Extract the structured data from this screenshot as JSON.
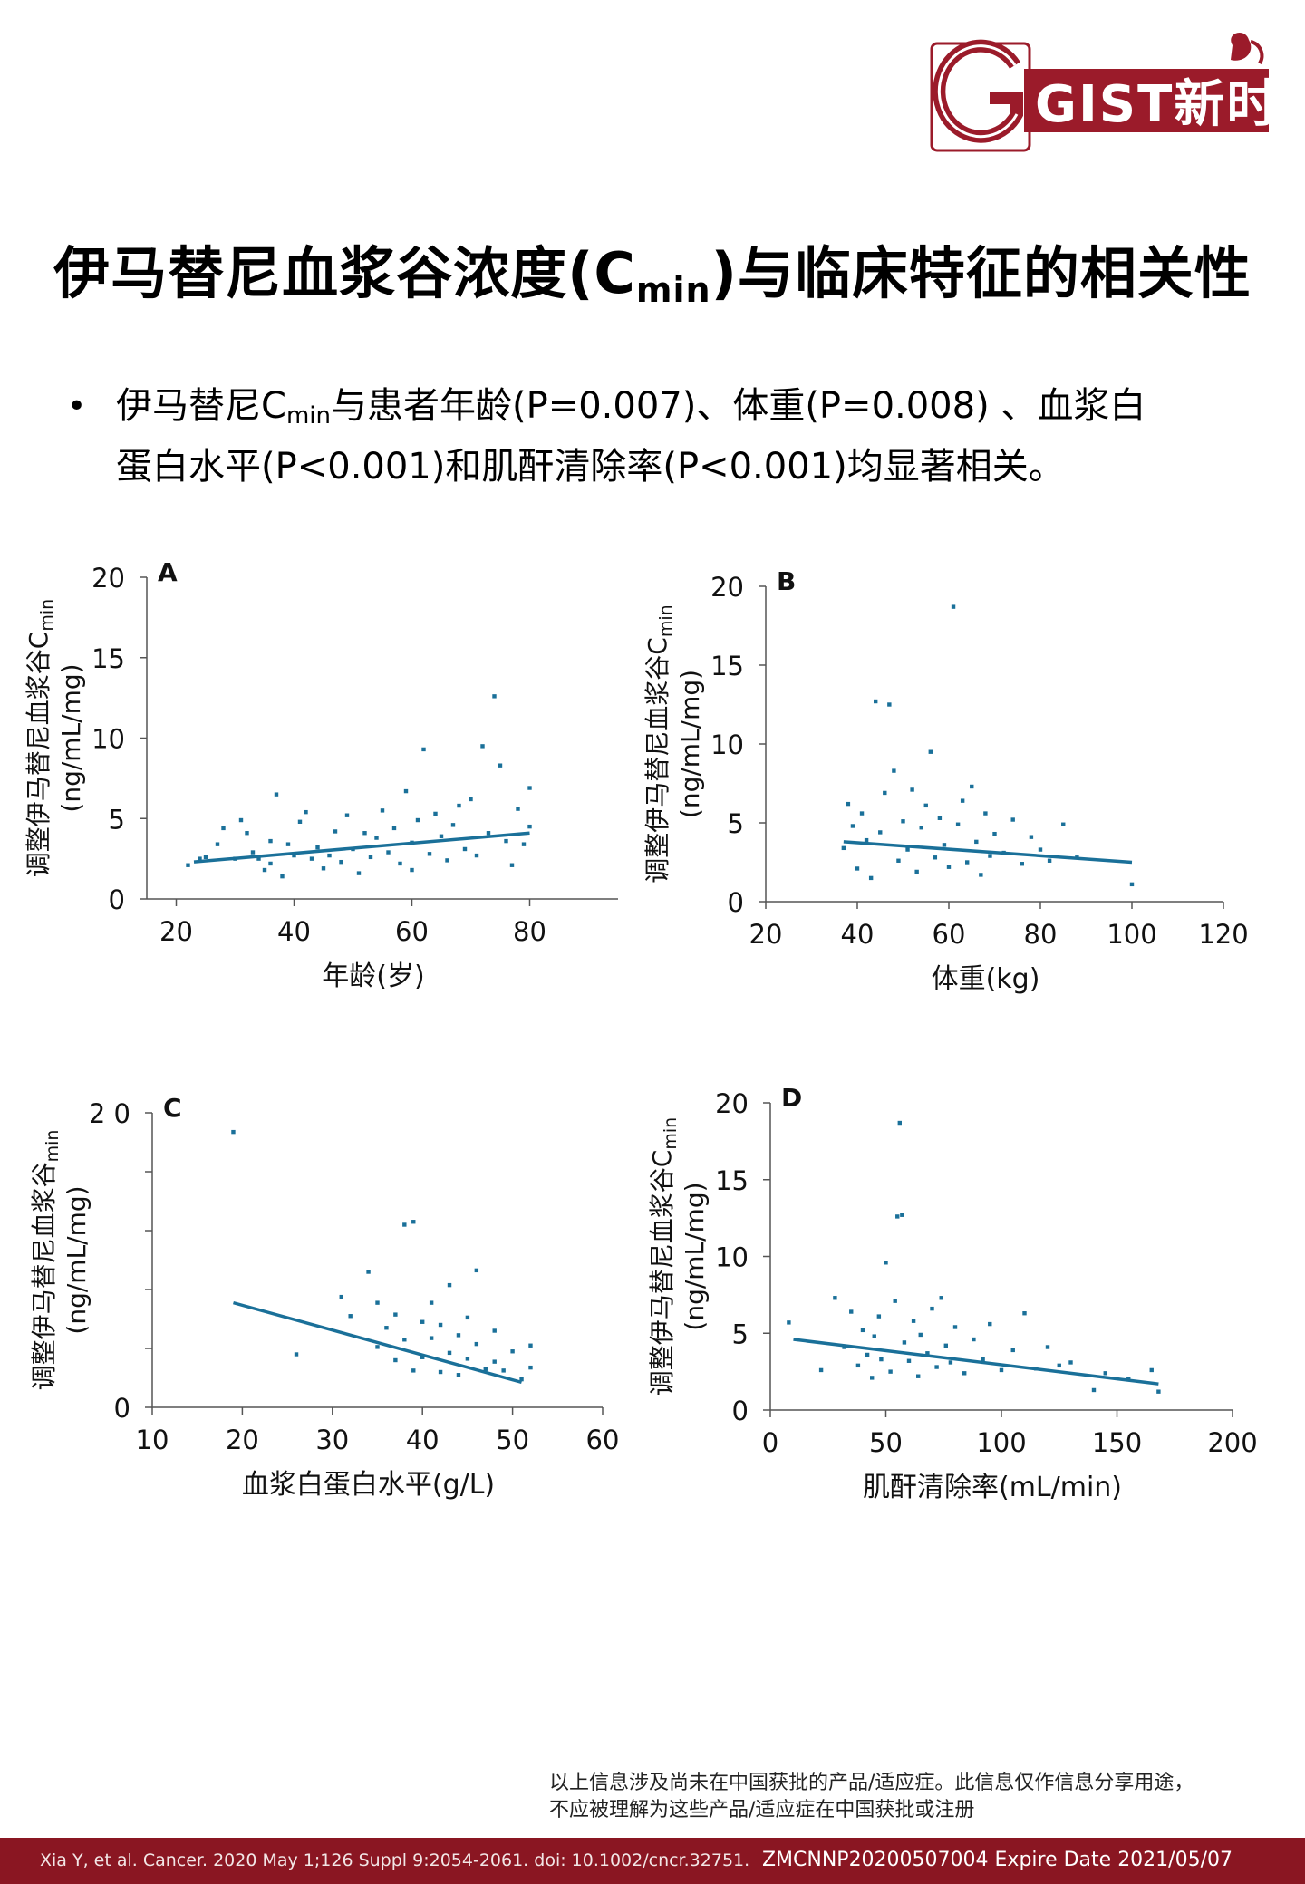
{
  "logo": {
    "text": "GIST新时空"
  },
  "title": {
    "main": "伊马替尼血浆谷浓度(C",
    "sub": "min",
    "tail": ")与临床特征的相关性"
  },
  "bullet": {
    "line1_a": "伊马替尼C",
    "line1_sub": "min",
    "line1_b": "与患者年龄(P=0.007)、体重(P=0.008) 、血浆白",
    "line2": "蛋白水平(P<0.001)和肌酐清除率(P<0.001)均显著相关。"
  },
  "colors": {
    "marker": "#1a7099",
    "brand": "#9b1b2a"
  },
  "chart_data": [
    {
      "panel": "A",
      "type": "scatter",
      "xlabel": "年龄(岁)",
      "ylabel_main": "调整伊马替尼血浆谷C",
      "ylabel_sub": "min",
      "ylabel_unit": "(ng/mL/mg)",
      "xlim": [
        15,
        95
      ],
      "ylim": [
        0,
        20
      ],
      "xticks": [
        "20",
        "40",
        "60",
        "80"
      ],
      "yticks": [
        "0",
        "5",
        "10",
        "15",
        "20"
      ],
      "points": [
        [
          22,
          2.1
        ],
        [
          24,
          2.5
        ],
        [
          25,
          2.6
        ],
        [
          27,
          3.4
        ],
        [
          28,
          4.4
        ],
        [
          30,
          2.5
        ],
        [
          31,
          4.9
        ],
        [
          32,
          4.1
        ],
        [
          33,
          2.9
        ],
        [
          34,
          2.5
        ],
        [
          35,
          1.8
        ],
        [
          36,
          3.6
        ],
        [
          36,
          2.2
        ],
        [
          37,
          6.5
        ],
        [
          38,
          1.4
        ],
        [
          39,
          3.4
        ],
        [
          40,
          2.7
        ],
        [
          41,
          4.8
        ],
        [
          42,
          5.4
        ],
        [
          43,
          2.5
        ],
        [
          44,
          3.2
        ],
        [
          45,
          1.9
        ],
        [
          46,
          2.7
        ],
        [
          47,
          4.2
        ],
        [
          48,
          2.3
        ],
        [
          49,
          5.2
        ],
        [
          50,
          3.1
        ],
        [
          51,
          1.6
        ],
        [
          52,
          4.1
        ],
        [
          53,
          2.6
        ],
        [
          54,
          3.8
        ],
        [
          55,
          5.5
        ],
        [
          56,
          2.9
        ],
        [
          57,
          4.4
        ],
        [
          58,
          2.2
        ],
        [
          59,
          6.7
        ],
        [
          60,
          3.5
        ],
        [
          60,
          1.8
        ],
        [
          61,
          4.9
        ],
        [
          62,
          9.3
        ],
        [
          63,
          2.8
        ],
        [
          64,
          5.3
        ],
        [
          65,
          3.9
        ],
        [
          66,
          2.4
        ],
        [
          67,
          4.6
        ],
        [
          68,
          5.8
        ],
        [
          69,
          3.1
        ],
        [
          70,
          6.2
        ],
        [
          71,
          2.7
        ],
        [
          72,
          9.5
        ],
        [
          73,
          4.1
        ],
        [
          74,
          12.6
        ],
        [
          75,
          8.3
        ],
        [
          76,
          3.6
        ],
        [
          77,
          2.1
        ],
        [
          78,
          5.6
        ],
        [
          79,
          3.4
        ],
        [
          80,
          6.9
        ],
        [
          80,
          4.5
        ]
      ],
      "fit": [
        [
          23,
          2.3
        ],
        [
          80,
          4.1
        ]
      ]
    },
    {
      "panel": "B",
      "type": "scatter",
      "xlabel": "体重(kg)",
      "ylabel_main": "调整伊马替尼血浆谷C",
      "ylabel_sub": "min",
      "ylabel_unit": "(ng/mL/mg)",
      "xlim": [
        20,
        120
      ],
      "ylim": [
        0,
        20
      ],
      "xticks": [
        "20",
        "40",
        "60",
        "80",
        "100",
        "120"
      ],
      "yticks": [
        "0",
        "5",
        "10",
        "15",
        "20"
      ],
      "points": [
        [
          37,
          3.4
        ],
        [
          38,
          6.2
        ],
        [
          39,
          4.8
        ],
        [
          40,
          2.1
        ],
        [
          41,
          5.6
        ],
        [
          42,
          3.9
        ],
        [
          43,
          1.5
        ],
        [
          44,
          12.7
        ],
        [
          45,
          4.4
        ],
        [
          46,
          6.9
        ],
        [
          47,
          12.5
        ],
        [
          48,
          8.3
        ],
        [
          49,
          2.6
        ],
        [
          50,
          5.1
        ],
        [
          51,
          3.3
        ],
        [
          52,
          7.1
        ],
        [
          53,
          1.9
        ],
        [
          54,
          4.7
        ],
        [
          55,
          6.1
        ],
        [
          56,
          9.5
        ],
        [
          57,
          2.8
        ],
        [
          58,
          5.3
        ],
        [
          59,
          3.6
        ],
        [
          60,
          2.2
        ],
        [
          61,
          18.7
        ],
        [
          62,
          4.9
        ],
        [
          63,
          6.4
        ],
        [
          64,
          2.5
        ],
        [
          65,
          7.3
        ],
        [
          66,
          3.8
        ],
        [
          67,
          1.7
        ],
        [
          68,
          5.6
        ],
        [
          69,
          2.9
        ],
        [
          70,
          4.3
        ],
        [
          72,
          3.1
        ],
        [
          74,
          5.2
        ],
        [
          76,
          2.4
        ],
        [
          78,
          4.1
        ],
        [
          80,
          3.3
        ],
        [
          82,
          2.6
        ],
        [
          85,
          4.9
        ],
        [
          88,
          2.8
        ],
        [
          100,
          1.1
        ]
      ],
      "fit": [
        [
          37,
          3.8
        ],
        [
          100,
          2.5
        ]
      ]
    },
    {
      "panel": "C",
      "type": "scatter",
      "xlabel": "血浆白蛋白水平(g/L)",
      "ylabel_main": "调整伊马替尼血浆谷",
      "ylabel_sub": "min",
      "ylabel_unit": "(ng/mL/mg)",
      "xlim": [
        10,
        60
      ],
      "ylim": [
        0,
        20
      ],
      "xticks": [
        "10",
        "20",
        "30",
        "40",
        "50",
        "60"
      ],
      "yticks": [
        "0",
        "",
        "",
        "",
        "",
        "2 0"
      ],
      "points": [
        [
          19,
          18.7
        ],
        [
          26,
          3.6
        ],
        [
          31,
          7.5
        ],
        [
          32,
          6.2
        ],
        [
          34,
          9.2
        ],
        [
          35,
          4.1
        ],
        [
          35,
          7.1
        ],
        [
          36,
          5.4
        ],
        [
          37,
          3.2
        ],
        [
          37,
          6.3
        ],
        [
          38,
          12.4
        ],
        [
          38,
          4.6
        ],
        [
          39,
          12.6
        ],
        [
          39,
          2.5
        ],
        [
          40,
          5.8
        ],
        [
          40,
          3.4
        ],
        [
          41,
          4.7
        ],
        [
          41,
          7.1
        ],
        [
          42,
          2.4
        ],
        [
          42,
          5.6
        ],
        [
          43,
          3.7
        ],
        [
          43,
          8.3
        ],
        [
          44,
          4.9
        ],
        [
          44,
          2.2
        ],
        [
          45,
          6.1
        ],
        [
          45,
          3.3
        ],
        [
          46,
          9.3
        ],
        [
          46,
          4.3
        ],
        [
          47,
          2.6
        ],
        [
          48,
          5.2
        ],
        [
          48,
          3.1
        ],
        [
          49,
          2.5
        ],
        [
          50,
          3.8
        ],
        [
          51,
          1.9
        ],
        [
          52,
          4.2
        ],
        [
          52,
          2.7
        ]
      ],
      "fit": [
        [
          19,
          7.1
        ],
        [
          51,
          1.7
        ]
      ]
    },
    {
      "panel": "D",
      "type": "scatter",
      "xlabel": "肌酐清除率(mL/min)",
      "ylabel_main": "调整伊马替尼血浆谷C",
      "ylabel_sub": "min",
      "ylabel_unit": "(ng/mL/mg)",
      "xlim": [
        0,
        200
      ],
      "ylim": [
        0,
        20
      ],
      "xticks": [
        "0",
        "50",
        "100",
        "150",
        "200"
      ],
      "yticks": [
        "0",
        "5",
        "10",
        "15",
        "20"
      ],
      "points": [
        [
          8,
          5.7
        ],
        [
          22,
          2.6
        ],
        [
          28,
          7.3
        ],
        [
          32,
          4.1
        ],
        [
          35,
          6.4
        ],
        [
          38,
          2.9
        ],
        [
          40,
          5.2
        ],
        [
          42,
          3.6
        ],
        [
          44,
          2.1
        ],
        [
          45,
          4.8
        ],
        [
          47,
          6.1
        ],
        [
          48,
          3.3
        ],
        [
          50,
          9.6
        ],
        [
          52,
          2.5
        ],
        [
          54,
          7.1
        ],
        [
          55,
          12.6
        ],
        [
          56,
          18.7
        ],
        [
          57,
          12.7
        ],
        [
          58,
          4.4
        ],
        [
          60,
          3.2
        ],
        [
          62,
          5.8
        ],
        [
          64,
          2.2
        ],
        [
          65,
          4.9
        ],
        [
          68,
          3.7
        ],
        [
          70,
          6.6
        ],
        [
          72,
          2.8
        ],
        [
          74,
          7.3
        ],
        [
          76,
          4.2
        ],
        [
          78,
          3.1
        ],
        [
          80,
          5.4
        ],
        [
          84,
          2.4
        ],
        [
          88,
          4.6
        ],
        [
          92,
          3.3
        ],
        [
          95,
          5.6
        ],
        [
          100,
          2.6
        ],
        [
          105,
          3.9
        ],
        [
          110,
          6.3
        ],
        [
          115,
          2.7
        ],
        [
          120,
          4.1
        ],
        [
          125,
          2.9
        ],
        [
          130,
          3.1
        ],
        [
          140,
          1.3
        ],
        [
          145,
          2.4
        ],
        [
          155,
          2.0
        ],
        [
          165,
          2.6
        ],
        [
          168,
          1.2
        ]
      ],
      "fit": [
        [
          10,
          4.6
        ],
        [
          168,
          1.7
        ]
      ]
    }
  ],
  "disclaimer": {
    "line1": "以上信息涉及尚未在中国获批的产品/适应症。此信息仅作信息分享用途，",
    "line2": "不应被理解为这些产品/适应症在中国获批或注册"
  },
  "footer": {
    "citation": "Xia Y, et al. Cancer. 2020 May 1;126 Suppl 9:2054-2061. doi: 10.1002/cncr.32751.",
    "code": "ZMCNNP20200507004 Expire Date 2021/05/07"
  }
}
